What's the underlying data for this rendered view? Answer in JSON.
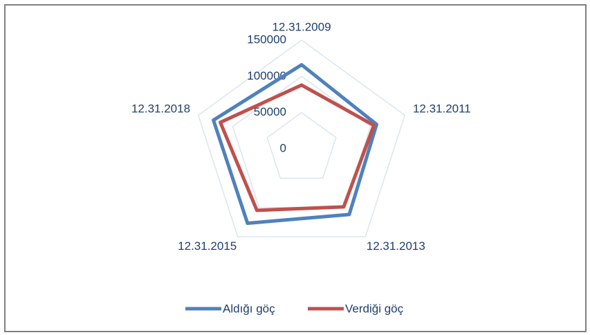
{
  "chart_data": {
    "type": "radar",
    "categories": [
      "12.31.2009",
      "12.31.2011",
      "12.31.2013",
      "12.31.2015",
      "12.31.2018"
    ],
    "series": [
      {
        "name": "Aldığı göç",
        "color": "#4f81bd",
        "values": [
          116000,
          109000,
          112000,
          127000,
          128000
        ]
      },
      {
        "name": "Verdiği göç",
        "color": "#c0504d",
        "values": [
          88000,
          105000,
          99000,
          105000,
          118000
        ]
      }
    ],
    "ylim": [
      0,
      150000
    ],
    "yticks": [
      0,
      50000,
      100000,
      150000
    ],
    "grid": true,
    "legend": "bottom"
  }
}
